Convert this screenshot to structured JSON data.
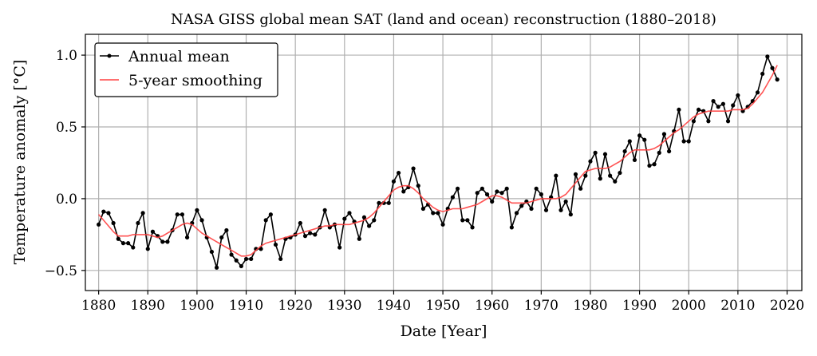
{
  "chart_data": {
    "type": "line",
    "title": "NASA GISS global mean SAT (land and ocean) reconstruction (1880–2018)",
    "xlabel": "Date [Year]",
    "ylabel": "Temperature anomaly [°C]",
    "xlim": [
      1877.3,
      2023
    ],
    "ylim": [
      -0.64,
      1.145
    ],
    "xticks": [
      1880,
      1890,
      1900,
      1910,
      1920,
      1930,
      1940,
      1950,
      1960,
      1970,
      1980,
      1990,
      2000,
      2010,
      2020
    ],
    "xtick_labels": [
      "1880",
      "1890",
      "1900",
      "1910",
      "1920",
      "1930",
      "1940",
      "1950",
      "1960",
      "1970",
      "1980",
      "1990",
      "2000",
      "2010",
      "2020"
    ],
    "yticks": [
      -0.5,
      0.0,
      0.5,
      1.0
    ],
    "ytick_labels": [
      "−0.5",
      "0.0",
      "0.5",
      "1.0"
    ],
    "grid": true,
    "legend": {
      "placement": "top-left",
      "entries": [
        "Annual mean",
        "5-year smoothing"
      ]
    },
    "colors": {
      "annual": "#000000",
      "smooth": "#ff4040",
      "grid": "#b0b0b0"
    },
    "x_start": 1880,
    "series": [
      {
        "name": "Annual mean",
        "values": [
          -0.18,
          -0.09,
          -0.1,
          -0.17,
          -0.28,
          -0.31,
          -0.31,
          -0.34,
          -0.17,
          -0.1,
          -0.35,
          -0.23,
          -0.26,
          -0.3,
          -0.3,
          -0.22,
          -0.11,
          -0.11,
          -0.27,
          -0.17,
          -0.08,
          -0.15,
          -0.27,
          -0.37,
          -0.48,
          -0.27,
          -0.22,
          -0.39,
          -0.43,
          -0.47,
          -0.42,
          -0.42,
          -0.35,
          -0.35,
          -0.15,
          -0.11,
          -0.32,
          -0.42,
          -0.28,
          -0.27,
          -0.25,
          -0.17,
          -0.26,
          -0.24,
          -0.25,
          -0.2,
          -0.08,
          -0.2,
          -0.18,
          -0.34,
          -0.14,
          -0.1,
          -0.16,
          -0.28,
          -0.13,
          -0.19,
          -0.15,
          -0.03,
          -0.03,
          -0.03,
          0.12,
          0.18,
          0.05,
          0.08,
          0.21,
          0.09,
          -0.07,
          -0.04,
          -0.1,
          -0.1,
          -0.18,
          -0.07,
          0.01,
          0.07,
          -0.15,
          -0.15,
          -0.2,
          0.04,
          0.07,
          0.03,
          -0.02,
          0.05,
          0.04,
          0.07,
          -0.2,
          -0.1,
          -0.05,
          -0.02,
          -0.07,
          0.07,
          0.03,
          -0.08,
          0.01,
          0.16,
          -0.08,
          -0.02,
          -0.11,
          0.17,
          0.07,
          0.16,
          0.26,
          0.32,
          0.14,
          0.31,
          0.16,
          0.12,
          0.18,
          0.33,
          0.4,
          0.27,
          0.44,
          0.41,
          0.23,
          0.24,
          0.32,
          0.45,
          0.33,
          0.47,
          0.62,
          0.4,
          0.4,
          0.54,
          0.62,
          0.61,
          0.54,
          0.68,
          0.64,
          0.66,
          0.54,
          0.65,
          0.72,
          0.61,
          0.64,
          0.68,
          0.74,
          0.87,
          0.99,
          0.91,
          0.83
        ]
      },
      {
        "name": "5-year smoothing",
        "values": [
          -0.11,
          -0.15,
          -0.19,
          -0.23,
          -0.26,
          -0.26,
          -0.26,
          -0.25,
          -0.25,
          -0.25,
          -0.25,
          -0.26,
          -0.27,
          -0.26,
          -0.24,
          -0.22,
          -0.2,
          -0.18,
          -0.17,
          -0.18,
          -0.21,
          -0.24,
          -0.26,
          -0.28,
          -0.3,
          -0.32,
          -0.34,
          -0.36,
          -0.38,
          -0.4,
          -0.4,
          -0.39,
          -0.36,
          -0.33,
          -0.31,
          -0.3,
          -0.29,
          -0.28,
          -0.27,
          -0.26,
          -0.25,
          -0.24,
          -0.23,
          -0.22,
          -0.21,
          -0.2,
          -0.19,
          -0.19,
          -0.18,
          -0.18,
          -0.18,
          -0.18,
          -0.17,
          -0.16,
          -0.15,
          -0.13,
          -0.1,
          -0.06,
          -0.02,
          0.02,
          0.06,
          0.08,
          0.09,
          0.09,
          0.07,
          0.04,
          0.0,
          -0.03,
          -0.06,
          -0.08,
          -0.09,
          -0.08,
          -0.07,
          -0.07,
          -0.07,
          -0.06,
          -0.05,
          -0.04,
          -0.02,
          0.0,
          0.02,
          0.02,
          0.01,
          -0.01,
          -0.03,
          -0.03,
          -0.03,
          -0.03,
          -0.02,
          -0.01,
          0.0,
          0.0,
          0.0,
          0.0,
          0.01,
          0.03,
          0.07,
          0.11,
          0.15,
          0.19,
          0.2,
          0.21,
          0.21,
          0.21,
          0.22,
          0.24,
          0.26,
          0.29,
          0.32,
          0.34,
          0.34,
          0.34,
          0.34,
          0.35,
          0.37,
          0.4,
          0.43,
          0.46,
          0.48,
          0.51,
          0.54,
          0.57,
          0.59,
          0.6,
          0.61,
          0.61,
          0.61,
          0.61,
          0.61,
          0.62,
          0.62,
          0.62,
          0.63,
          0.66,
          0.7,
          0.74,
          0.8,
          0.86,
          0.93
        ]
      }
    ]
  }
}
